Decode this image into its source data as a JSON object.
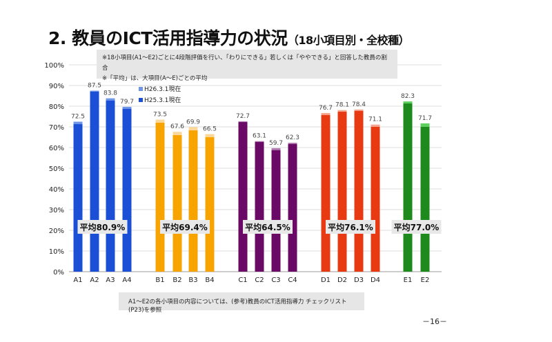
{
  "title": "2. 教員のICT活用指導力の状況",
  "subtitle": "（18小項目別・全校種）",
  "notes": [
    "※18小項目(A1～E2)ごとに4段階評価を行い、「わりにできる」若しくは「ややできる」と回答した教員の割合",
    "※「平均」は、大項目(A～E)ごとの平均"
  ],
  "footnote": "A1～E2の各小項目の内容については、(参考)教員のICT活用指導力 チェックリスト(P23)を参照",
  "page_number": "－16－",
  "chart_data": {
    "type": "bar",
    "ylim": [
      0,
      100
    ],
    "yticks": [
      "0%",
      "10%",
      "20%",
      "30%",
      "40%",
      "50%",
      "60%",
      "70%",
      "80%",
      "90%",
      "100%"
    ],
    "legend": [
      "H26.3.1現在",
      "H25.3.1現在"
    ],
    "categories": [
      "A1",
      "A2",
      "A3",
      "A4",
      "B1",
      "B2",
      "B3",
      "B4",
      "C1",
      "C2",
      "C3",
      "C4",
      "D1",
      "D2",
      "D3",
      "D4",
      "E1",
      "E2"
    ],
    "series": [
      {
        "name": "H26.3.1現在",
        "values": [
          72.5,
          87.5,
          83.8,
          79.7,
          73.5,
          67.6,
          69.9,
          66.5,
          72.7,
          63.1,
          59.7,
          62.3,
          76.7,
          78.1,
          78.4,
          71.1,
          82.3,
          71.7
        ]
      },
      {
        "name": "H25.3.1現在",
        "values": [
          71.3,
          87.0,
          82.7,
          78.7,
          72.0,
          66.0,
          68.3,
          65.0,
          72.3,
          62.7,
          58.7,
          61.7,
          75.7,
          77.3,
          77.7,
          70.0,
          81.3,
          70.0
        ]
      }
    ],
    "groups": [
      {
        "name": "A",
        "count": 4,
        "color": "#1a4fd6",
        "light": "#6f95e8",
        "average": "平均80.9%"
      },
      {
        "name": "B",
        "count": 4,
        "color": "#f7a400",
        "light": "#fcd79a",
        "average": "平均69.4%"
      },
      {
        "name": "C",
        "count": 4,
        "color": "#6a0a66",
        "light": "#b07ab0",
        "average": "平均64.5%"
      },
      {
        "name": "D",
        "count": 4,
        "color": "#e83a12",
        "light": "#f5a58f",
        "average": "平均76.1%"
      },
      {
        "name": "E",
        "count": 2,
        "color": "#1e8a1e",
        "light": "#5fd05f",
        "average": "平均77.0%"
      }
    ]
  }
}
